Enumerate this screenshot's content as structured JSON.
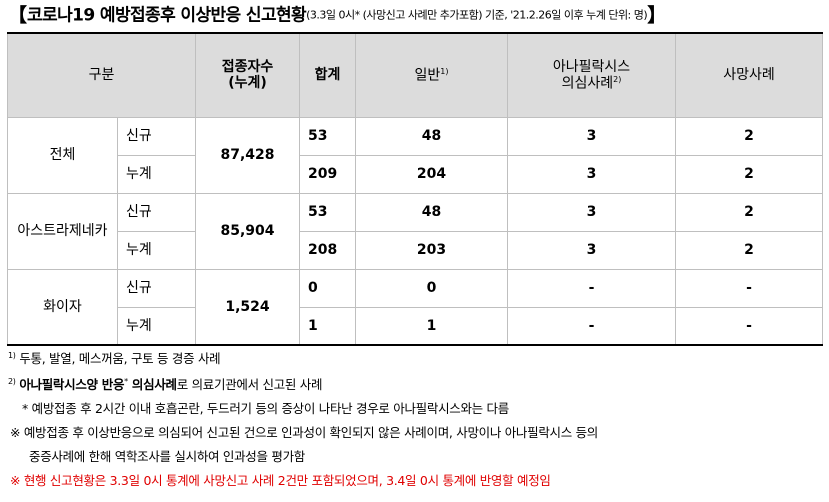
{
  "title": {
    "open_bracket": "【",
    "main": "코로나19 예방접종후 이상반응 신고현황",
    "sub": "(3.3일 0시* (사망신고 사례만 추가포함) 기준, '21.2.26일 이후 누계 단위: 명)",
    "close_bracket": "】"
  },
  "headers": {
    "category": "구분",
    "vaccinated_line1": "접종자수",
    "vaccinated_line2": "(누계)",
    "total": "합계",
    "general": "일반",
    "general_sup": "1)",
    "anaphylaxis_line1": "아나필락시스",
    "anaphylaxis_line2": "의심사례",
    "anaphylaxis_sup": "2)",
    "death": "사망사례"
  },
  "groups": [
    {
      "name": "전체",
      "vaccinated": "87,428",
      "rows": [
        {
          "type": "신규",
          "total": "53",
          "general": "48",
          "anaphylaxis": "3",
          "death": "2"
        },
        {
          "type": "누계",
          "total": "209",
          "general": "204",
          "anaphylaxis": "3",
          "death": "2"
        }
      ]
    },
    {
      "name": "아스트라제네카",
      "vaccinated": "85,904",
      "rows": [
        {
          "type": "신규",
          "total": "53",
          "general": "48",
          "anaphylaxis": "3",
          "death": "2"
        },
        {
          "type": "누계",
          "total": "208",
          "general": "203",
          "anaphylaxis": "3",
          "death": "2"
        }
      ]
    },
    {
      "name": "화이자",
      "vaccinated": "1,524",
      "rows": [
        {
          "type": "신규",
          "total": "0",
          "general": "0",
          "anaphylaxis": "-",
          "death": "-"
        },
        {
          "type": "누계",
          "total": "1",
          "general": "1",
          "anaphylaxis": "-",
          "death": "-"
        }
      ]
    }
  ],
  "notes": {
    "n1_marker": "1)",
    "n1_text": "두통, 발열, 메스꺼움, 구토 등 경증 사례",
    "n2_marker": "2)",
    "n2_bold1": "아나필락시스양 반응",
    "n2_star": "*",
    "n2_bold2": " 의심사례",
    "n2_rest": "로 의료기관에서 신고된 사례",
    "n3": "* 예방접종 후 2시간 이내 호흡곤란, 두드러기 등의 증상이 나타난 경우로 아나필락시스와는 다름",
    "n4_line1": "※ 예방접종 후 이상반응으로 의심되어 신고된 건으로 인과성이 확인되지 않은 사례이며, 사망이나 아나필락시스 등의",
    "n4_line2": "중증사례에 한해 역학조사를 실시하여 인과성을 평가함",
    "n5": "※ 현행 신고현황은 3.3일 0시 통계에 사망신고 사례 2건만 포함되었으며, 3.4일 0시 통계에 반영할 예정임"
  },
  "colors": {
    "header_bg": "#dcdcdc",
    "grid_line": "#bfbfbf",
    "warning_text": "#e00000"
  }
}
